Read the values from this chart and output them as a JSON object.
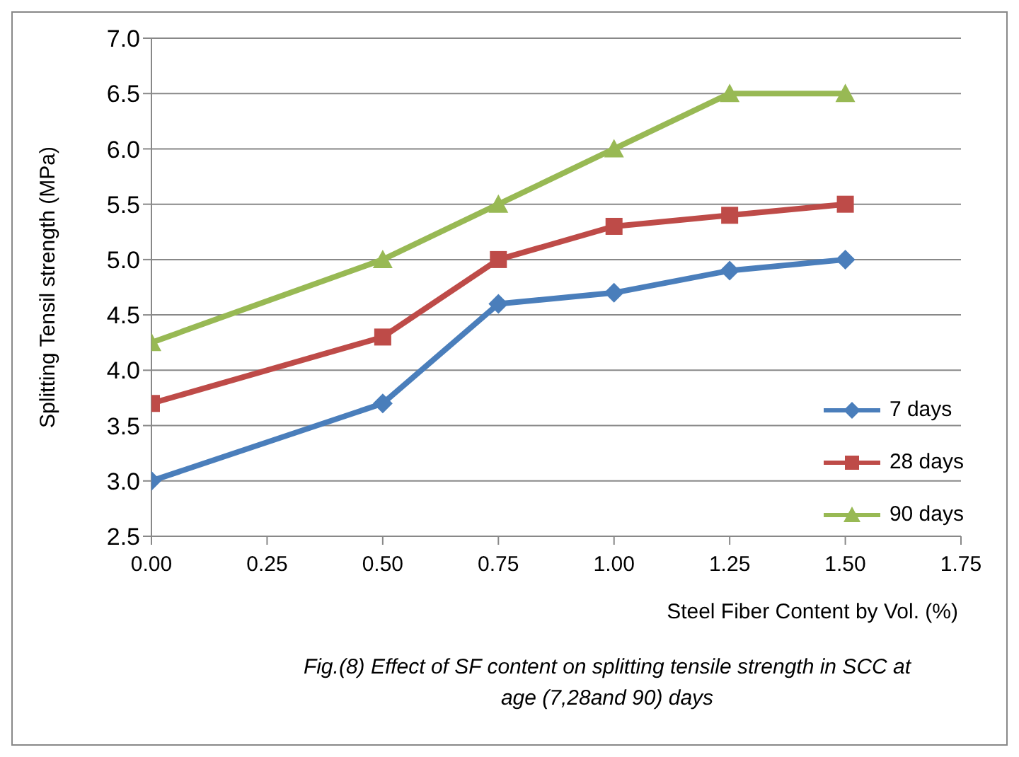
{
  "chart_data": {
    "type": "line",
    "xlabel": "Steel Fiber Content  by Vol. (%)",
    "ylabel": "Splitting Tensil strength (MPa)",
    "x": [
      0,
      0.5,
      0.75,
      1,
      1.25,
      1.5
    ],
    "series": [
      {
        "name": "7 days",
        "color": "#4a7ebb",
        "marker": "diamond",
        "values": [
          3.0,
          3.7,
          4.6,
          4.7,
          4.9,
          5.0
        ]
      },
      {
        "name": "28 days",
        "color": "#be4b48",
        "marker": "square",
        "values": [
          3.7,
          4.3,
          5.0,
          5.3,
          5.4,
          5.5
        ]
      },
      {
        "name": "90 days",
        "color": "#98b954",
        "marker": "triangle",
        "values": [
          4.25,
          5.0,
          5.5,
          6.0,
          6.5,
          6.5
        ]
      }
    ],
    "xlim": [
      0,
      1.75
    ],
    "xticks": [
      {
        "value": 0,
        "label": "0.00"
      },
      {
        "value": 0.25,
        "label": "0.25"
      },
      {
        "value": 0.5,
        "label": "0.50"
      },
      {
        "value": 0.75,
        "label": "0.75"
      },
      {
        "value": 1,
        "label": "1.00"
      },
      {
        "value": 1.25,
        "label": "1.25"
      },
      {
        "value": 1.5,
        "label": "1.50"
      },
      {
        "value": 1.75,
        "label": "1.75"
      }
    ],
    "ylim": [
      2.5,
      7.0
    ],
    "yticks": [
      {
        "value": 2.5,
        "label": "2.5"
      },
      {
        "value": 3,
        "label": "3.0"
      },
      {
        "value": 3.5,
        "label": "3.5"
      },
      {
        "value": 4,
        "label": "4.0"
      },
      {
        "value": 4.5,
        "label": "4.5"
      },
      {
        "value": 5,
        "label": "5.0"
      },
      {
        "value": 5.5,
        "label": "5.5"
      },
      {
        "value": 6,
        "label": "6.0"
      },
      {
        "value": 6.5,
        "label": "6.5"
      },
      {
        "value": 7,
        "label": "7.0"
      }
    ],
    "grid": "y",
    "legend": "bottom right",
    "line_style": "solid",
    "annotations": [
      "Fig.(8) Effect of  SF content on splitting tensile  strength in SCC at age (7,28and 90) days"
    ]
  }
}
